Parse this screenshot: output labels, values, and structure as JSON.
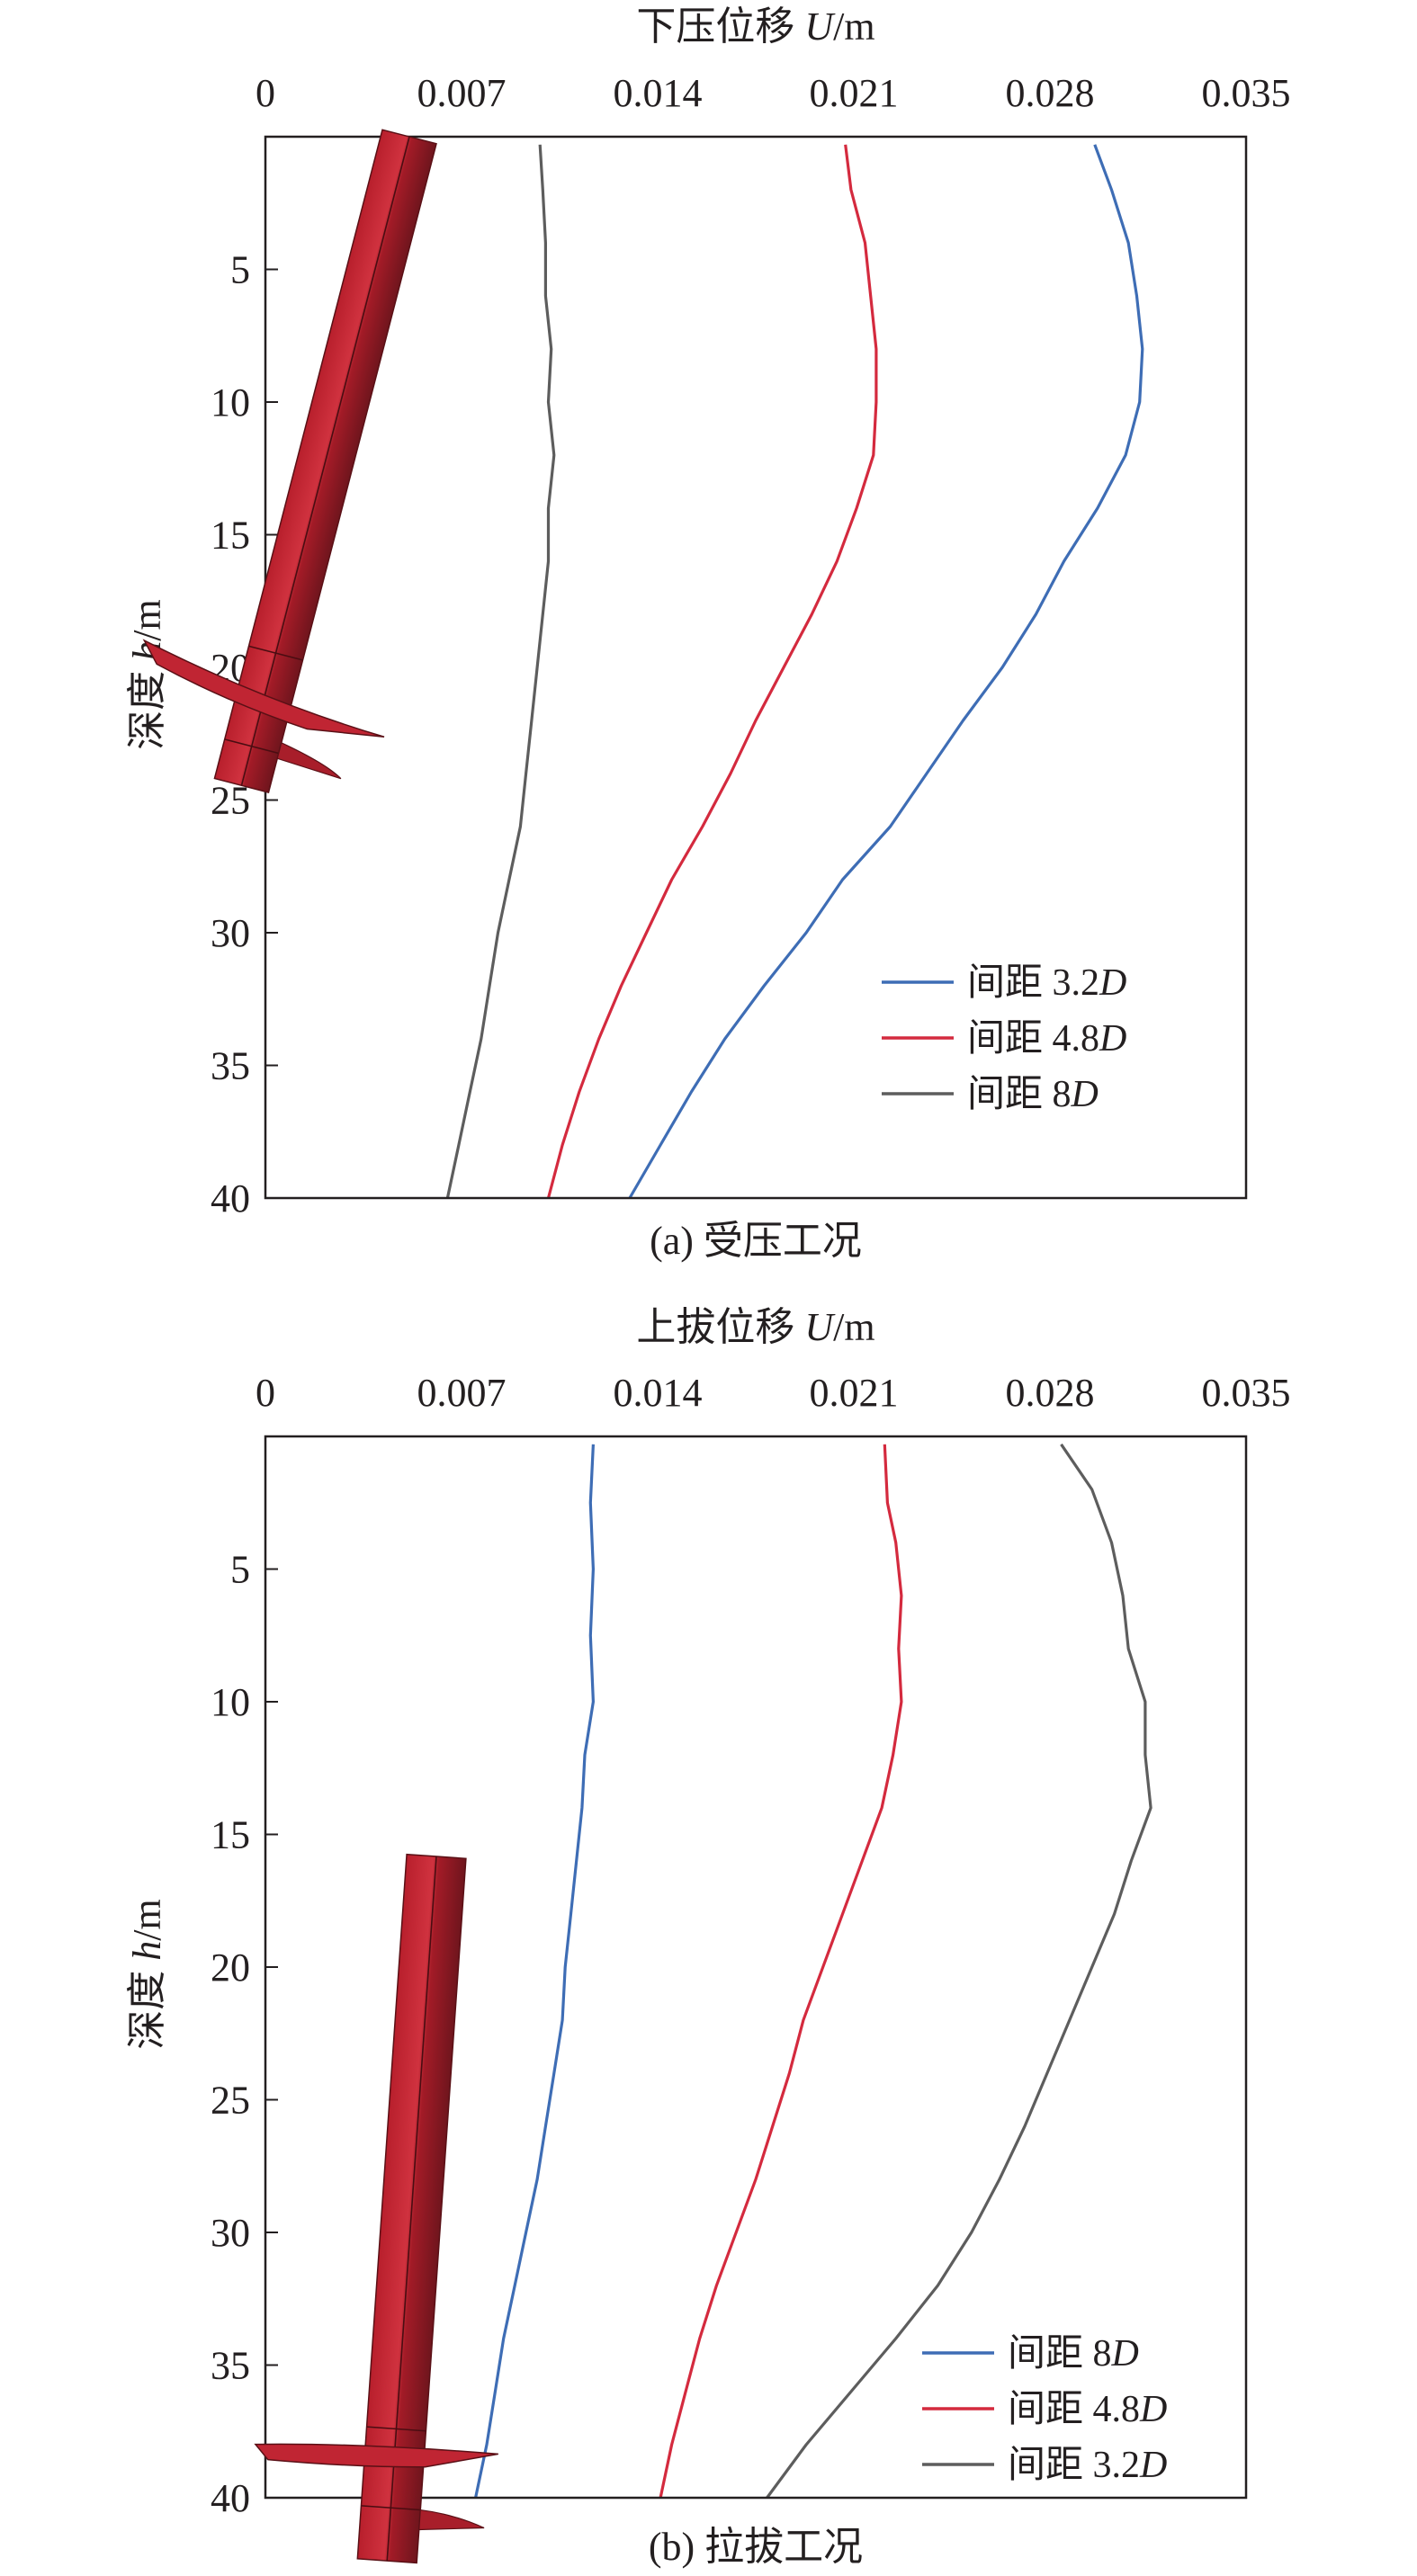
{
  "figure_data": [
    {
      "id": "a",
      "caption": "(a) 受压工况",
      "xlabel": {
        "text": "下压位移 ",
        "var": "U",
        "unit": "/m"
      },
      "ylabel": {
        "text": "深度 ",
        "var": "h",
        "unit": "/m"
      },
      "xlim": [
        0,
        0.035
      ],
      "ylim": [
        0,
        40
      ],
      "x_ticks": [
        "0",
        "0.007",
        "0.014",
        "0.021",
        "0.028",
        "0.035"
      ],
      "y_ticks": [
        "5",
        "10",
        "15",
        "20",
        "25",
        "30",
        "35",
        "40"
      ],
      "pile": {
        "shown": true
      },
      "series": [
        {
          "name": "间距 3.2",
          "name_var": "D",
          "color": "#3e6db5",
          "points": [
            [
              0.0296,
              0.3
            ],
            [
              0.0302,
              2
            ],
            [
              0.0308,
              4
            ],
            [
              0.0311,
              6
            ],
            [
              0.0313,
              8
            ],
            [
              0.0312,
              10
            ],
            [
              0.0307,
              12
            ],
            [
              0.0297,
              14
            ],
            [
              0.0285,
              16
            ],
            [
              0.0275,
              18
            ],
            [
              0.0263,
              20
            ],
            [
              0.0249,
              22
            ],
            [
              0.0236,
              24
            ],
            [
              0.0223,
              26
            ],
            [
              0.0206,
              28
            ],
            [
              0.0193,
              30
            ],
            [
              0.0178,
              32
            ],
            [
              0.0164,
              34
            ],
            [
              0.0152,
              36
            ],
            [
              0.0141,
              38
            ],
            [
              0.013,
              40
            ]
          ]
        },
        {
          "name": "间距 4.8",
          "name_var": "D",
          "color": "#d42a3e",
          "points": [
            [
              0.0207,
              0.3
            ],
            [
              0.0209,
              2
            ],
            [
              0.0214,
              4
            ],
            [
              0.0216,
              6
            ],
            [
              0.0218,
              8
            ],
            [
              0.0218,
              10
            ],
            [
              0.0217,
              12
            ],
            [
              0.0211,
              14
            ],
            [
              0.0204,
              16
            ],
            [
              0.0195,
              18
            ],
            [
              0.0185,
              20
            ],
            [
              0.0175,
              22
            ],
            [
              0.0166,
              24
            ],
            [
              0.0156,
              26
            ],
            [
              0.0145,
              28
            ],
            [
              0.0136,
              30
            ],
            [
              0.0127,
              32
            ],
            [
              0.0119,
              34
            ],
            [
              0.0112,
              36
            ],
            [
              0.0106,
              38
            ],
            [
              0.0101,
              40
            ]
          ]
        },
        {
          "name": "间距 8",
          "name_var": "D",
          "color": "#5d5d5d",
          "points": [
            [
              0.0098,
              0.3
            ],
            [
              0.0099,
              2
            ],
            [
              0.01,
              4
            ],
            [
              0.01,
              6
            ],
            [
              0.0102,
              8
            ],
            [
              0.0101,
              10
            ],
            [
              0.0103,
              12
            ],
            [
              0.0101,
              14
            ],
            [
              0.0101,
              16
            ],
            [
              0.0099,
              18
            ],
            [
              0.0097,
              20
            ],
            [
              0.0095,
              22
            ],
            [
              0.0093,
              24
            ],
            [
              0.0091,
              26
            ],
            [
              0.0087,
              28
            ],
            [
              0.0083,
              30
            ],
            [
              0.008,
              32
            ],
            [
              0.0077,
              34
            ],
            [
              0.0073,
              36
            ],
            [
              0.0069,
              38
            ],
            [
              0.0065,
              40
            ]
          ]
        }
      ]
    },
    {
      "id": "b",
      "caption": "(b) 拉拔工况",
      "xlabel": {
        "text": "上拔位移 ",
        "var": "U",
        "unit": "/m"
      },
      "ylabel": {
        "text": "深度 ",
        "var": "h",
        "unit": "/m"
      },
      "xlim": [
        0,
        0.035
      ],
      "ylim": [
        0,
        40
      ],
      "x_ticks": [
        "0",
        "0.007",
        "0.014",
        "0.021",
        "0.028",
        "0.035"
      ],
      "y_ticks": [
        "5",
        "10",
        "15",
        "20",
        "25",
        "30",
        "35",
        "40"
      ],
      "pile": {
        "shown": true
      },
      "series": [
        {
          "name": "间距 8",
          "name_var": "D",
          "color": "#3e6db5",
          "points": [
            [
              0.0117,
              0.3
            ],
            [
              0.0116,
              2.5
            ],
            [
              0.0117,
              5
            ],
            [
              0.0116,
              7.5
            ],
            [
              0.0117,
              10
            ],
            [
              0.0114,
              12
            ],
            [
              0.0113,
              14
            ],
            [
              0.0111,
              16
            ],
            [
              0.0109,
              18
            ],
            [
              0.0107,
              20
            ],
            [
              0.0106,
              22
            ],
            [
              0.0103,
              24
            ],
            [
              0.01,
              26
            ],
            [
              0.0097,
              28
            ],
            [
              0.0093,
              30
            ],
            [
              0.0089,
              32
            ],
            [
              0.0085,
              34
            ],
            [
              0.0082,
              36
            ],
            [
              0.0079,
              38
            ],
            [
              0.0075,
              40
            ]
          ]
        },
        {
          "name": "间距 4.8",
          "name_var": "D",
          "color": "#d42a3e",
          "points": [
            [
              0.0221,
              0.3
            ],
            [
              0.0222,
              2.5
            ],
            [
              0.0225,
              4
            ],
            [
              0.0227,
              6
            ],
            [
              0.0226,
              8
            ],
            [
              0.0227,
              10
            ],
            [
              0.0224,
              12
            ],
            [
              0.022,
              14
            ],
            [
              0.0213,
              16
            ],
            [
              0.0206,
              18
            ],
            [
              0.0199,
              20
            ],
            [
              0.0192,
              22
            ],
            [
              0.0187,
              24
            ],
            [
              0.0181,
              26
            ],
            [
              0.0175,
              28
            ],
            [
              0.0168,
              30
            ],
            [
              0.0161,
              32
            ],
            [
              0.0155,
              34
            ],
            [
              0.015,
              36
            ],
            [
              0.0145,
              38
            ],
            [
              0.0141,
              40
            ]
          ]
        },
        {
          "name": "间距 3.2",
          "name_var": "D",
          "color": "#5d5d5d",
          "points": [
            [
              0.0284,
              0.3
            ],
            [
              0.0295,
              2
            ],
            [
              0.0302,
              4
            ],
            [
              0.0306,
              6
            ],
            [
              0.0308,
              8
            ],
            [
              0.0314,
              10
            ],
            [
              0.0314,
              12
            ],
            [
              0.0316,
              14
            ],
            [
              0.0309,
              16
            ],
            [
              0.0303,
              18
            ],
            [
              0.0295,
              20
            ],
            [
              0.0287,
              22
            ],
            [
              0.0279,
              24
            ],
            [
              0.0271,
              26
            ],
            [
              0.0262,
              28
            ],
            [
              0.0252,
              30
            ],
            [
              0.024,
              32
            ],
            [
              0.0225,
              34
            ],
            [
              0.0209,
              36
            ],
            [
              0.0193,
              38
            ],
            [
              0.0179,
              40
            ]
          ]
        }
      ]
    }
  ],
  "colors": {
    "axis": "#231f20",
    "pile_dark": "#7e1a22",
    "pile_mid": "#b4212d",
    "pile_light": "#cf3b47"
  }
}
